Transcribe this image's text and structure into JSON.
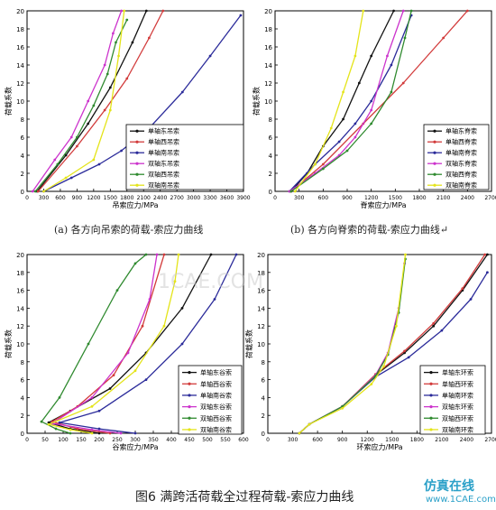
{
  "figure": {
    "caption_a": "(a) 各方向吊索的荷载-索应力曲线",
    "caption_b": "(b) 各方向脊索的荷载-索应力曲线↵",
    "caption": "图6 满跨活荷载全过程荷载-索应力曲线",
    "watermark_brand": "仿真在线",
    "watermark_url": "www.1CAE.com",
    "watermark_mid": "1CAE.COM"
  },
  "colors": {
    "black": "#111111",
    "red": "#d23b3b",
    "navy": "#2b2b9a",
    "magenta": "#cc33cc",
    "green": "#2f8a2f",
    "yellow": "#e4e41a",
    "axis": "#000000"
  },
  "chart_data": [
    {
      "id": "a",
      "type": "line",
      "ylabel": "荷载系数",
      "xlabel": "吊索应力/MPa",
      "ylim": [
        0,
        20
      ],
      "yticks": [
        0,
        2,
        4,
        6,
        8,
        10,
        12,
        14,
        16,
        18,
        20
      ],
      "xlim": [
        0,
        3900
      ],
      "xticks": [
        0,
        300,
        600,
        900,
        1200,
        1500,
        1800,
        2100,
        2400,
        2700,
        3000,
        3300,
        3600,
        3900
      ],
      "legend": [
        "单轴东吊索",
        "单轴西吊索",
        "单轴南吊索",
        "双轴东吊索",
        "双轴西吊索",
        "双轴南吊索"
      ],
      "series": [
        {
          "name": "单轴东吊索",
          "color": "black",
          "x": [
            180,
            700,
            1100,
            1500,
            1900,
            2150
          ],
          "y": [
            0,
            4,
            7.5,
            11.5,
            16.5,
            20
          ]
        },
        {
          "name": "单轴西吊索",
          "color": "red",
          "x": [
            200,
            900,
            1400,
            1800,
            2200,
            2450
          ],
          "y": [
            0,
            5,
            9,
            12.5,
            17,
            20
          ]
        },
        {
          "name": "单轴南吊索",
          "color": "navy",
          "x": [
            300,
            800,
            1300,
            1700,
            2200,
            2800,
            3300,
            3850
          ],
          "y": [
            0,
            1.5,
            3,
            4.5,
            7,
            11,
            15,
            19.5
          ]
        },
        {
          "name": "双轴东吊索",
          "color": "magenta",
          "x": [
            100,
            500,
            800,
            1100,
            1400,
            1550,
            1700
          ],
          "y": [
            0,
            3.5,
            6,
            10,
            14,
            17.5,
            20
          ]
        },
        {
          "name": "双轴西吊索",
          "color": "green",
          "x": [
            150,
            550,
            900,
            1200,
            1450,
            1600,
            1800
          ],
          "y": [
            0,
            3,
            6,
            9.5,
            13,
            16.5,
            19
          ]
        },
        {
          "name": "双轴南吊索",
          "color": "yellow",
          "x": [
            300,
            700,
            1200,
            1500,
            1650,
            1750
          ],
          "y": [
            0,
            1.5,
            3.5,
            9,
            15,
            20
          ]
        }
      ]
    },
    {
      "id": "b",
      "type": "line",
      "ylabel": "荷载系数",
      "xlabel": "脊索应力/MPa",
      "ylim": [
        0,
        20
      ],
      "yticks": [
        0,
        2,
        4,
        6,
        8,
        10,
        12,
        14,
        16,
        18,
        20
      ],
      "xlim": [
        0,
        2700
      ],
      "xticks": [
        0,
        300,
        600,
        900,
        1200,
        1500,
        1800,
        2100,
        2400,
        2700
      ],
      "legend": [
        "单轴东脊索",
        "单轴西脊索",
        "单轴南脊索",
        "双轴东脊索",
        "双轴西脊索",
        "双轴南脊索"
      ],
      "series": [
        {
          "name": "单轴东脊索",
          "color": "black",
          "x": [
            200,
            400,
            600,
            850,
            1050,
            1200,
            1480
          ],
          "y": [
            0,
            2,
            5,
            8,
            12,
            15,
            20
          ]
        },
        {
          "name": "单轴西脊索",
          "color": "red",
          "x": [
            200,
            600,
            1100,
            1600,
            2100,
            2400
          ],
          "y": [
            0,
            3,
            7.5,
            12,
            17,
            20
          ]
        },
        {
          "name": "单轴南脊索",
          "color": "navy",
          "x": [
            180,
            500,
            800,
            1000,
            1200,
            1450,
            1700
          ],
          "y": [
            0,
            3,
            5.5,
            7.5,
            10,
            14,
            19.5
          ]
        },
        {
          "name": "双轴东脊索",
          "color": "magenta",
          "x": [
            180,
            500,
            800,
            1000,
            1200,
            1400,
            1600
          ],
          "y": [
            0,
            2,
            4,
            6,
            9,
            15,
            20
          ]
        },
        {
          "name": "双轴西脊索",
          "color": "green",
          "x": [
            200,
            600,
            900,
            1200,
            1450,
            1620,
            1700
          ],
          "y": [
            0,
            2.5,
            4.5,
            7.5,
            11,
            17,
            20
          ]
        },
        {
          "name": "双轴南脊索",
          "color": "yellow",
          "x": [
            250,
            500,
            700,
            850,
            1000,
            1100
          ],
          "y": [
            0,
            3,
            7,
            11,
            15,
            20
          ]
        }
      ]
    },
    {
      "id": "c",
      "type": "line",
      "ylabel": "荷载系数",
      "xlabel": "谷索应力/MPa",
      "ylim": [
        0,
        20
      ],
      "yticks": [
        0,
        2,
        4,
        6,
        8,
        10,
        12,
        14,
        16,
        18,
        20
      ],
      "xlim": [
        0,
        600
      ],
      "xticks": [
        0,
        50,
        100,
        150,
        200,
        250,
        300,
        350,
        400,
        450,
        500,
        550,
        600
      ],
      "legend": [
        "单轴东谷索",
        "单轴西谷索",
        "单轴南谷索",
        "双轴东谷索",
        "双轴西谷索",
        "双轴南谷索"
      ],
      "series": [
        {
          "name": "单轴东谷索",
          "color": "black",
          "x": [
            200,
            120,
            60,
            120,
            230,
            330,
            430,
            510
          ],
          "y": [
            0,
            0.5,
            1.2,
            2.5,
            5,
            9,
            14,
            20
          ]
        },
        {
          "name": "单轴西谷索",
          "color": "red",
          "x": [
            230,
            140,
            70,
            140,
            240,
            320,
            380
          ],
          "y": [
            0,
            0.5,
            1.3,
            3,
            6.5,
            12,
            20
          ]
        },
        {
          "name": "单轴南谷索",
          "color": "navy",
          "x": [
            300,
            200,
            90,
            200,
            330,
            430,
            520,
            580
          ],
          "y": [
            0,
            0.5,
            1.2,
            2.5,
            6,
            10,
            15,
            20
          ]
        },
        {
          "name": "双轴东谷索",
          "color": "magenta",
          "x": [
            260,
            180,
            70,
            180,
            280,
            340,
            360
          ],
          "y": [
            0,
            0.4,
            1.1,
            4,
            9,
            15,
            20
          ]
        },
        {
          "name": "双轴西谷索",
          "color": "green",
          "x": [
            120,
            80,
            40,
            90,
            170,
            250,
            300,
            330
          ],
          "y": [
            0,
            0.5,
            1.3,
            4,
            10,
            16,
            19,
            20
          ]
        },
        {
          "name": "双轴南谷索",
          "color": "yellow",
          "x": [
            180,
            120,
            60,
            180,
            300,
            380,
            410,
            420
          ],
          "y": [
            0,
            0.4,
            1.0,
            3,
            7,
            12,
            17,
            20
          ]
        }
      ]
    },
    {
      "id": "d",
      "type": "line",
      "ylabel": "荷载系数",
      "xlabel": "环索应力/MPa",
      "ylim": [
        0,
        20
      ],
      "yticks": [
        0,
        2,
        4,
        6,
        8,
        10,
        12,
        14,
        16,
        18,
        20
      ],
      "xlim": [
        0,
        2700
      ],
      "xticks": [
        0,
        300,
        600,
        900,
        1200,
        1500,
        1800,
        2100,
        2400,
        2700
      ],
      "legend": [
        "单轴东环索",
        "单轴西环索",
        "单轴南环索",
        "双轴东环索",
        "双轴西环索",
        "双轴南环索"
      ],
      "series": [
        {
          "name": "单轴东环索",
          "color": "black",
          "x": [
            380,
            500,
            900,
            1300,
            1650,
            2000,
            2350,
            2650
          ],
          "y": [
            0,
            1,
            3,
            6.5,
            9,
            12,
            16,
            20
          ]
        },
        {
          "name": "单轴西环索",
          "color": "red",
          "x": [
            380,
            500,
            900,
            1300,
            1650,
            2000,
            2350,
            2620
          ],
          "y": [
            0,
            1,
            3,
            6.6,
            9.2,
            12.3,
            16.2,
            20
          ]
        },
        {
          "name": "单轴南环索",
          "color": "navy",
          "x": [
            380,
            500,
            900,
            1300,
            1700,
            2100,
            2450,
            2650
          ],
          "y": [
            0,
            1,
            3,
            6.3,
            8.5,
            11.5,
            15,
            18
          ]
        },
        {
          "name": "双轴东环索",
          "color": "magenta",
          "x": [
            380,
            500,
            900,
            1300,
            1450,
            1580,
            1650
          ],
          "y": [
            0,
            1,
            3,
            6.5,
            9,
            14,
            19
          ]
        },
        {
          "name": "双轴西环索",
          "color": "green",
          "x": [
            380,
            500,
            900,
            1300,
            1450,
            1580,
            1660
          ],
          "y": [
            0,
            1,
            3,
            6.4,
            8.8,
            13.5,
            19.5
          ]
        },
        {
          "name": "双轴南环索",
          "color": "yellow",
          "x": [
            380,
            500,
            900,
            1250,
            1400,
            1550,
            1660
          ],
          "y": [
            0,
            1,
            2.8,
            5.5,
            7.5,
            12,
            20
          ]
        }
      ]
    }
  ]
}
